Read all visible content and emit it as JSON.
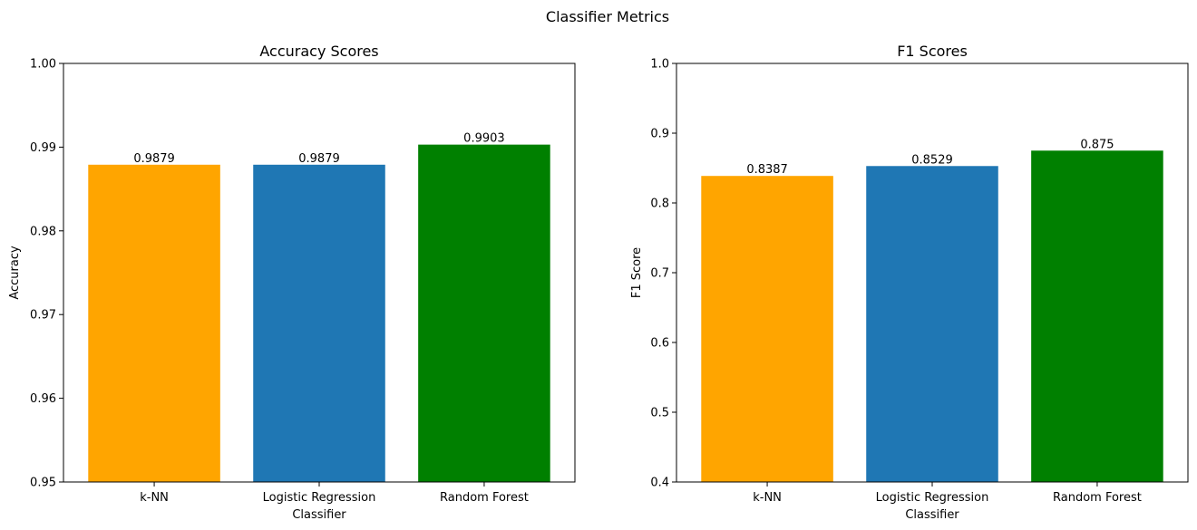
{
  "figure": {
    "suptitle": "Classifier Metrics"
  },
  "chart_data": [
    {
      "type": "bar",
      "title": "Accuracy Scores",
      "xlabel": "Classifier",
      "ylabel": "Accuracy",
      "categories": [
        "k-NN",
        "Logistic Regression",
        "Random Forest"
      ],
      "values": [
        0.9879,
        0.9879,
        0.9903
      ],
      "value_labels": [
        "0.9879",
        "0.9879",
        "0.9903"
      ],
      "colors": [
        "#ffa500",
        "#1f77b4",
        "#008000"
      ],
      "ylim": [
        0.95,
        1.0
      ],
      "yticks": [
        0.95,
        0.96,
        0.97,
        0.98,
        0.99,
        1.0
      ],
      "ytick_labels": [
        "0.95",
        "0.96",
        "0.97",
        "0.98",
        "0.99",
        "1.00"
      ],
      "grid": false,
      "legend": false
    },
    {
      "type": "bar",
      "title": "F1 Scores",
      "xlabel": "Classifier",
      "ylabel": "F1 Score",
      "categories": [
        "k-NN",
        "Logistic Regression",
        "Random Forest"
      ],
      "values": [
        0.8387,
        0.8529,
        0.875
      ],
      "value_labels": [
        "0.8387",
        "0.8529",
        "0.875"
      ],
      "colors": [
        "#ffa500",
        "#1f77b4",
        "#008000"
      ],
      "ylim": [
        0.4,
        1.0
      ],
      "yticks": [
        0.4,
        0.5,
        0.6,
        0.7,
        0.8,
        0.9,
        1.0
      ],
      "ytick_labels": [
        "0.4",
        "0.5",
        "0.6",
        "0.7",
        "0.8",
        "0.9",
        "1.0"
      ],
      "grid": false,
      "legend": false
    }
  ]
}
